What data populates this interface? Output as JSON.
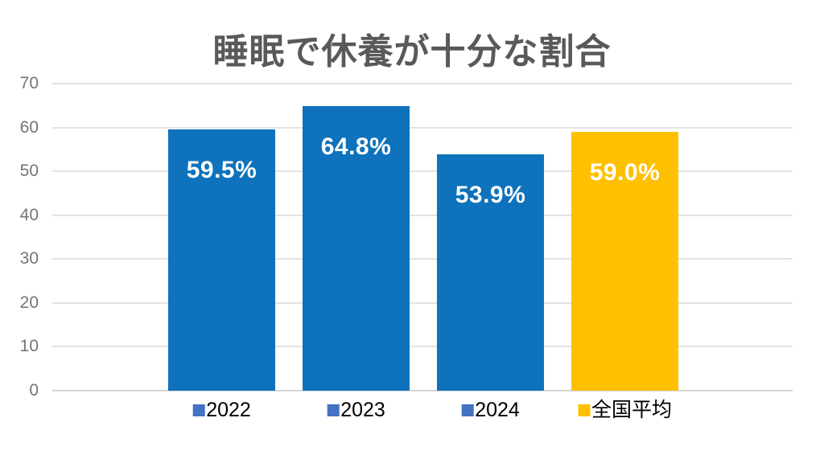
{
  "chart_data": {
    "type": "bar",
    "title": "睡眠で休養が十分な割合",
    "categories": [
      "2022",
      "2023",
      "2024",
      "全国平均"
    ],
    "values": [
      59.5,
      64.8,
      53.9,
      59.0
    ],
    "value_labels": [
      "59.5%",
      "64.8%",
      "53.9%",
      "59.0%"
    ],
    "bar_colors": [
      "#0e72bc",
      "#0e72bc",
      "#0e72bc",
      "#ffc000"
    ],
    "legend_marker_colors": [
      "#4472c4",
      "#4472c4",
      "#4472c4",
      "#ffc000"
    ],
    "xlabel": "",
    "ylabel": "",
    "ylim": [
      0,
      70
    ],
    "yticks": [
      0,
      10,
      20,
      30,
      40,
      50,
      60,
      70
    ],
    "grid": true,
    "legend_position": "bottom"
  },
  "colors": {
    "title_text": "#595959",
    "axis_text": "#757575",
    "gridline": "#e2e2e2",
    "bar_label_text": "#ffffff",
    "legend_text": "#000000",
    "background": "#ffffff"
  }
}
